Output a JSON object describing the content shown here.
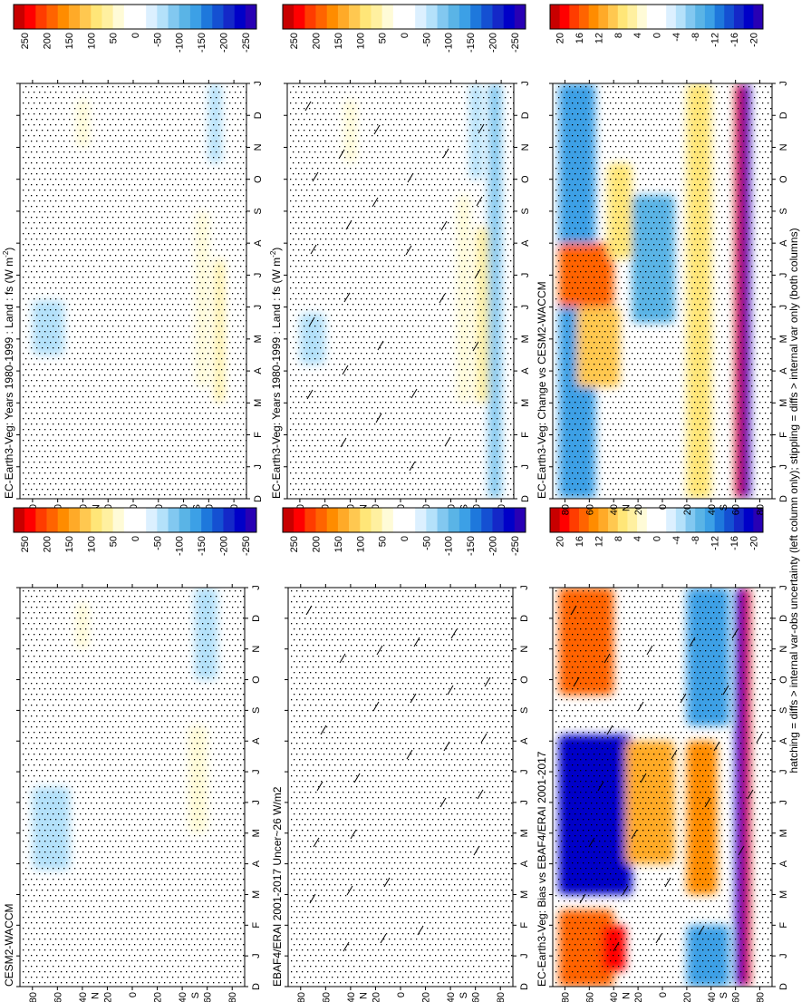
{
  "figure": {
    "footnote": "hatching = diffs > internal var-obs uncertainty (left column only); stippling = diffs > internal var only (both columns)"
  },
  "colorbars": {
    "abs": {
      "labels": [
        "250",
        "200",
        "150",
        "100",
        "50",
        "0",
        "-50",
        "-100",
        "-150",
        "-200",
        "-250"
      ],
      "colors": [
        "#c80000",
        "#ff0000",
        "#ff3c00",
        "#ff6400",
        "#ff8c00",
        "#ffaa28",
        "#ffc850",
        "#ffe678",
        "#fff0a0",
        "#fffbd7",
        "#ffffff",
        "#ffffff",
        "#dcf0ff",
        "#b4e1fa",
        "#82c8f0",
        "#5ab4e6",
        "#3ca0e6",
        "#1e78dc",
        "#1450d2",
        "#1428c8",
        "#0000c8",
        "#2800b4"
      ]
    },
    "diff": {
      "labels": [
        "20",
        "16",
        "12",
        "8",
        "4",
        "0",
        "-4",
        "-8",
        "-12",
        "-16",
        "-20"
      ],
      "colors": [
        "#c80000",
        "#ff0000",
        "#ff3c00",
        "#ff6400",
        "#ff8c00",
        "#ffaa28",
        "#ffc850",
        "#ffe678",
        "#fff0a0",
        "#fffbd7",
        "#ffffff",
        "#ffffff",
        "#dcf0ff",
        "#b4e1fa",
        "#82c8f0",
        "#5ab4e6",
        "#3ca0e6",
        "#1e78dc",
        "#1450d2",
        "#1428c8",
        "#0000c8",
        "#2800b4"
      ]
    }
  },
  "axes": {
    "lat_ticks": [
      "80",
      "60",
      "40",
      "20",
      "0",
      "20",
      "40",
      "60",
      "80"
    ],
    "lat_suffix_n": "N",
    "lat_suffix_s": "S",
    "months": [
      "D",
      "J",
      "F",
      "M",
      "A",
      "M",
      "J",
      "J",
      "A",
      "S",
      "O",
      "N",
      "D",
      "J"
    ]
  },
  "chart_data": [
    {
      "type": "heatmap",
      "panel": "top-left",
      "title": "EC-Earth3-Veg: Years 1980-1999 : Land : fs (W m",
      "title_sup": "-2",
      "title_end": ")",
      "colorbar": "abs",
      "xlabel": "month",
      "ylabel": "latitude",
      "ylim": [
        90,
        -90
      ],
      "blobs": [
        {
          "lat": [
            60,
            80
          ],
          "month": [
            4.2,
            5.8
          ],
          "value": -60
        },
        {
          "lat": [
            35,
            45
          ],
          "month": [
            10.5,
            12.5
          ],
          "value": 40
        },
        {
          "lat": [
            -45,
            -55
          ],
          "month": [
            3.0,
            9.5
          ],
          "value": 40
        },
        {
          "lat": [
            -60,
            -70
          ],
          "month": [
            3.0,
            8.5
          ],
          "value": 70
        },
        {
          "lat": [
            -55,
            -65
          ],
          "month": [
            10.0,
            13.0
          ],
          "value": -70
        },
        {
          "lat": [
            -70,
            -80
          ],
          "month": [
            0.0,
            13.0
          ],
          "value": -90
        }
      ],
      "hatching": true,
      "stippling": true
    },
    {
      "type": "heatmap",
      "panel": "top-right",
      "title": "EC-Earth3-Veg: Years 1980-1999 : Land : fs (W m",
      "title_sup": "-2",
      "title_end": ")",
      "colorbar": "abs",
      "xlabel": "month",
      "ylabel": "latitude",
      "ylim": [
        90,
        -90
      ],
      "blobs": [
        {
          "lat": [
            55,
            80
          ],
          "month": [
            4.5,
            6.2
          ],
          "value": -60
        },
        {
          "lat": [
            35,
            45
          ],
          "month": [
            11.0,
            12.5
          ],
          "value": 40
        },
        {
          "lat": [
            -50,
            -60
          ],
          "month": [
            3.5,
            9.0
          ],
          "value": 40
        },
        {
          "lat": [
            -60,
            -70
          ],
          "month": [
            10.5,
            13.0
          ],
          "value": -60
        },
        {
          "lat": [
            -65,
            -72
          ],
          "month": [
            3.0,
            7.5
          ],
          "value": 60
        }
      ],
      "hatching": false,
      "stippling": true
    },
    {
      "type": "heatmap",
      "panel": "middle-left",
      "title": "EBAF4/ERAI 2001-2017 Uncer~26 W/m2",
      "title_sup": "",
      "title_end": "",
      "colorbar": "abs",
      "xlabel": "month",
      "ylabel": "latitude",
      "ylim": [
        90,
        -90
      ],
      "blobs": [],
      "hatching": true,
      "stippling": true
    },
    {
      "type": "heatmap",
      "panel": "middle-right",
      "title": "CESM2-WACCM",
      "title_sup": "",
      "title_end": "",
      "colorbar": "abs",
      "xlabel": "month",
      "ylabel": "latitude",
      "ylim": [
        90,
        -90
      ],
      "blobs": [
        {
          "lat": [
            50,
            80
          ],
          "month": [
            3.8,
            6.5
          ],
          "value": -60
        },
        {
          "lat": [
            35,
            45
          ],
          "month": [
            11.0,
            12.5
          ],
          "value": 40
        },
        {
          "lat": [
            -45,
            -60
          ],
          "month": [
            5.0,
            8.5
          ],
          "value": 40
        },
        {
          "lat": [
            -50,
            -68
          ],
          "month": [
            10.0,
            13.0
          ],
          "value": -60
        }
      ],
      "hatching": false,
      "stippling": true
    },
    {
      "type": "heatmap",
      "panel": "bottom-left",
      "title": "EC-Earth3-Veg: Bias vs EBAF4/ERAI 2001-2017",
      "title_sup": "",
      "title_end": "",
      "colorbar": "diff",
      "xlabel": "month",
      "ylabel": "latitude",
      "ylim": [
        90,
        -90
      ],
      "blobs": [
        {
          "lat": [
            40,
            85
          ],
          "month": [
            0.0,
            2.5
          ],
          "value": 14
        },
        {
          "lat": [
            40,
            85
          ],
          "month": [
            9.5,
            13.0
          ],
          "value": 14
        },
        {
          "lat": [
            25,
            85
          ],
          "month": [
            3.0,
            8.2
          ],
          "value": -18
        },
        {
          "lat": [
            30,
            50
          ],
          "month": [
            0.5,
            2.0
          ],
          "value": 18
        },
        {
          "lat": [
            -10,
            30
          ],
          "month": [
            4.0,
            8.0
          ],
          "value": 10
        },
        {
          "lat": [
            -20,
            -45
          ],
          "month": [
            3.0,
            8.0
          ],
          "value": 12
        },
        {
          "lat": [
            -20,
            -55
          ],
          "month": [
            8.5,
            13.0
          ],
          "value": -10
        },
        {
          "lat": [
            -20,
            -55
          ],
          "month": [
            0.0,
            2.0
          ],
          "value": -10
        },
        {
          "lat": [
            -65,
            -72
          ],
          "month": [
            0.0,
            13.0
          ],
          "value": 20
        },
        {
          "lat": [
            -60,
            -66
          ],
          "month": [
            0.0,
            13.0
          ],
          "value": -18
        }
      ],
      "hatching": true,
      "stippling": true
    },
    {
      "type": "heatmap",
      "panel": "bottom-right",
      "title": "EC-Earth3-Veg: Change vs CESM2-WACCM",
      "title_sup": "",
      "title_end": "",
      "colorbar": "diff",
      "xlabel": "month",
      "ylabel": "latitude",
      "ylim": [
        90,
        -90
      ],
      "blobs": [
        {
          "lat": [
            55,
            85
          ],
          "month": [
            0.0,
            13.0
          ],
          "value": -10
        },
        {
          "lat": [
            40,
            85
          ],
          "month": [
            6.0,
            8.0
          ],
          "value": 14
        },
        {
          "lat": [
            35,
            70
          ],
          "month": [
            3.5,
            6.0
          ],
          "value": 8
        },
        {
          "lat": [
            25,
            45
          ],
          "month": [
            7.5,
            10.5
          ],
          "value": 6
        },
        {
          "lat": [
            -10,
            25
          ],
          "month": [
            5.5,
            9.5
          ],
          "value": -8
        },
        {
          "lat": [
            -20,
            -40
          ],
          "month": [
            0.0,
            13.0
          ],
          "value": 6
        },
        {
          "lat": [
            -60,
            -66
          ],
          "month": [
            0.0,
            13.0
          ],
          "value": 20
        },
        {
          "lat": [
            -66,
            -72
          ],
          "month": [
            0.0,
            13.0
          ],
          "value": -20
        }
      ],
      "hatching": false,
      "stippling": true
    }
  ]
}
